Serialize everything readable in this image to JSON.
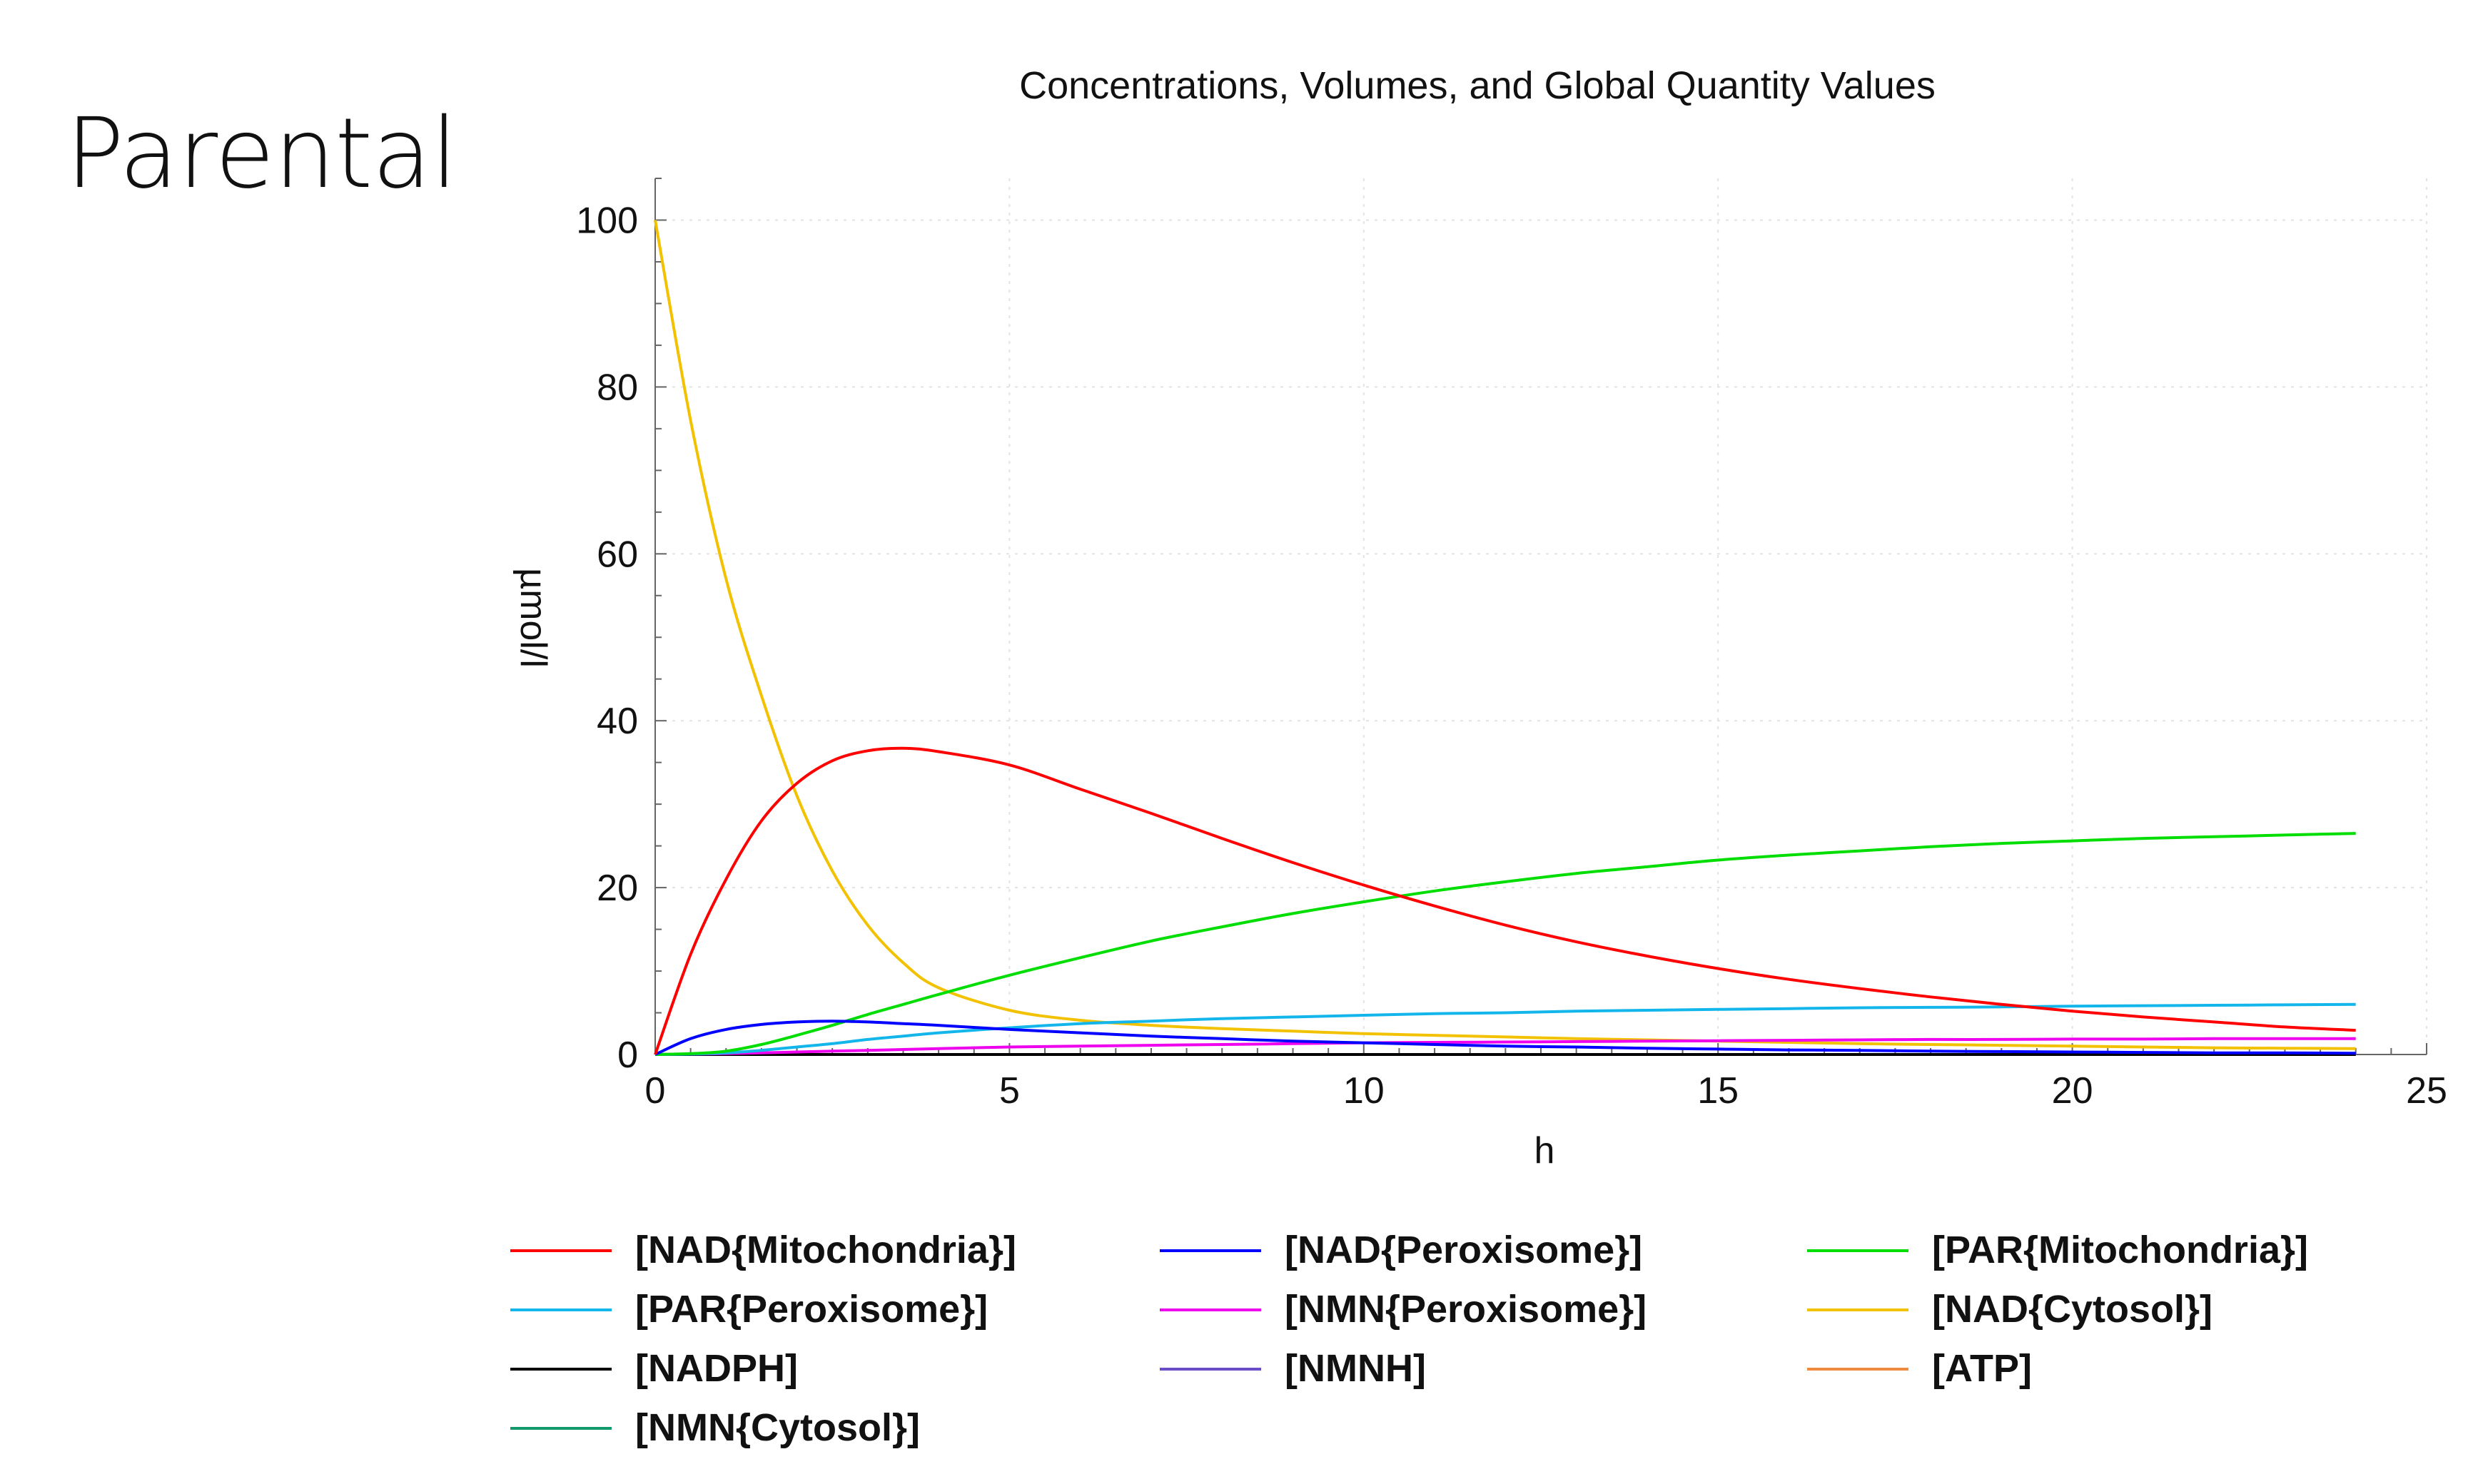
{
  "page": {
    "heading": "Parental"
  },
  "chart_data": {
    "type": "line",
    "title": "Concentrations, Volumes, and Global Quantity Values",
    "xlabel": "h",
    "ylabel": "µmol/l",
    "xlim": [
      0,
      25
    ],
    "ylim": [
      0,
      105
    ],
    "xticks": [
      0,
      5,
      10,
      15,
      20,
      25
    ],
    "yticks": [
      0,
      20,
      40,
      60,
      80,
      100
    ],
    "grid": true,
    "legend_position": "bottom",
    "x": [
      0,
      0.5,
      1,
      1.5,
      2,
      2.5,
      3,
      3.5,
      4,
      5,
      6,
      7,
      8,
      9,
      10,
      11,
      12,
      13,
      14,
      15,
      16,
      17,
      18,
      19,
      20,
      21,
      22,
      23,
      24
    ],
    "series": [
      {
        "name": "[NAD{Mitochondria}]",
        "color": "#ff0000",
        "values": [
          0,
          12,
          21,
          28,
          32.5,
          35.2,
          36.4,
          36.7,
          36.3,
          34.7,
          31.8,
          28.9,
          25.9,
          23,
          20.3,
          17.8,
          15.5,
          13.5,
          11.8,
          10.3,
          9,
          7.9,
          6.9,
          6,
          5.2,
          4.5,
          3.9,
          3.3,
          2.9
        ]
      },
      {
        "name": "[NAD{Peroxisome}]",
        "color": "#0000ff",
        "values": [
          0,
          1.9,
          3,
          3.6,
          3.9,
          4,
          3.9,
          3.7,
          3.5,
          3,
          2.6,
          2.2,
          1.9,
          1.6,
          1.4,
          1.2,
          1,
          0.9,
          0.75,
          0.65,
          0.55,
          0.5,
          0.4,
          0.35,
          0.3,
          0.25,
          0.2,
          0.2,
          0.15
        ]
      },
      {
        "name": "[PAR{Mitochondria}]",
        "color": "#00dd00",
        "values": [
          0,
          0.1,
          0.4,
          1.2,
          2.3,
          3.5,
          4.8,
          6,
          7.2,
          9.5,
          11.6,
          13.6,
          15.3,
          16.9,
          18.3,
          19.6,
          20.7,
          21.7,
          22.5,
          23.3,
          23.9,
          24.4,
          24.9,
          25.3,
          25.6,
          25.9,
          26.1,
          26.3,
          26.5
        ]
      },
      {
        "name": "[PAR{Peroxisome}]",
        "color": "#13b6ea",
        "values": [
          0,
          0.05,
          0.2,
          0.5,
          0.9,
          1.3,
          1.8,
          2.2,
          2.6,
          3.2,
          3.7,
          4,
          4.3,
          4.5,
          4.7,
          4.9,
          5,
          5.2,
          5.3,
          5.4,
          5.5,
          5.6,
          5.65,
          5.7,
          5.8,
          5.85,
          5.9,
          5.95,
          6
        ]
      },
      {
        "name": "[NMN{Peroxisome}]",
        "color": "#ee00ee",
        "values": [
          0,
          0.05,
          0.1,
          0.2,
          0.3,
          0.4,
          0.5,
          0.6,
          0.7,
          0.9,
          1,
          1.1,
          1.2,
          1.3,
          1.4,
          1.45,
          1.5,
          1.55,
          1.6,
          1.65,
          1.7,
          1.75,
          1.8,
          1.8,
          1.85,
          1.85,
          1.9,
          1.9,
          1.9
        ]
      },
      {
        "name": "[NAD{Cytosol}]",
        "color": "#f2c200",
        "values": [
          100,
          76,
          57,
          43,
          31,
          22,
          15.5,
          11,
          8,
          5.3,
          4.1,
          3.5,
          3.1,
          2.8,
          2.5,
          2.3,
          2.1,
          1.9,
          1.75,
          1.6,
          1.45,
          1.3,
          1.2,
          1.1,
          1,
          0.9,
          0.8,
          0.75,
          0.7
        ]
      },
      {
        "name": "[NADPH]",
        "color": "#000000",
        "values": [
          0,
          0,
          0,
          0,
          0,
          0,
          0,
          0,
          0,
          0,
          0,
          0,
          0,
          0,
          0,
          0,
          0,
          0,
          0,
          0,
          0,
          0,
          0,
          0,
          0,
          0,
          0,
          0,
          0
        ]
      },
      {
        "name": "[NMNH]",
        "color": "#6a4cc9",
        "values": [
          0,
          0,
          0,
          0,
          0,
          0,
          0,
          0,
          0,
          0,
          0,
          0,
          0,
          0,
          0,
          0,
          0,
          0,
          0,
          0,
          0,
          0,
          0,
          0,
          0,
          0,
          0,
          0,
          0
        ]
      },
      {
        "name": "[ATP]",
        "color": "#f08a3c",
        "values": [
          0,
          0,
          0,
          0,
          0,
          0,
          0,
          0,
          0,
          0,
          0,
          0,
          0,
          0,
          0,
          0,
          0,
          0,
          0,
          0,
          0,
          0,
          0,
          0,
          0,
          0,
          0,
          0,
          0
        ]
      },
      {
        "name": "[NMN{Cytosol}]",
        "color": "#119a6c",
        "values": [
          0,
          0,
          0,
          0,
          0,
          0,
          0,
          0,
          0,
          0,
          0,
          0,
          0,
          0,
          0,
          0,
          0,
          0,
          0,
          0,
          0,
          0,
          0,
          0,
          0,
          0,
          0,
          0,
          0
        ]
      }
    ],
    "legend_order": [
      "[NAD{Mitochondria}]",
      "[NAD{Peroxisome}]",
      "[PAR{Mitochondria}]",
      "[PAR{Peroxisome}]",
      "[NMN{Peroxisome}]",
      "[NAD{Cytosol}]",
      "[NADPH]",
      "[NMNH]",
      "[ATP]",
      "[NMN{Cytosol}]"
    ]
  }
}
